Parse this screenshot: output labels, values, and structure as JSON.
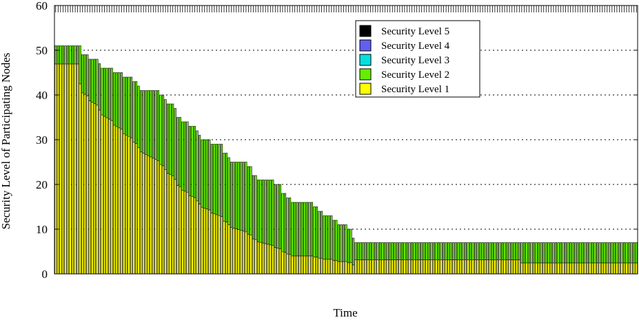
{
  "chart_data": {
    "type": "bar",
    "stacked": true,
    "xlabel": "Time",
    "ylabel": "Security Level of Participating Nodes",
    "ylim": [
      0,
      60
    ],
    "yticks": [
      "0",
      "10",
      "20",
      "30",
      "40",
      "50",
      "60"
    ],
    "grid": "horizontal-dotted",
    "legend_position": "top-right",
    "series": [
      {
        "name": "Security Level 5",
        "color": "#000000"
      },
      {
        "name": "Security Level 4",
        "color": "#6060f0"
      },
      {
        "name": "Security Level 3",
        "color": "#00e0e0"
      },
      {
        "name": "Security Level 2",
        "color": "#66ee00"
      },
      {
        "name": "Security Level 1",
        "color": "#ffff00"
      }
    ],
    "note": "Each time step shows the total security level of participating nodes as a stacked bar; the total declines stepwise from 51 to 7.",
    "totals": [
      51,
      51,
      51,
      51,
      51,
      51,
      51,
      51,
      51,
      51,
      51,
      49,
      49,
      49,
      48,
      48,
      48,
      48,
      47,
      46,
      46,
      46,
      46,
      46,
      45,
      45,
      45,
      45,
      44,
      44,
      44,
      44,
      43,
      43,
      42,
      41,
      41,
      41,
      41,
      41,
      41,
      41,
      41,
      40,
      40,
      39,
      38,
      38,
      38,
      37,
      35,
      35,
      34,
      34,
      34,
      33,
      33,
      33,
      32,
      31,
      30,
      30,
      30,
      30,
      29,
      29,
      29,
      29,
      29,
      27,
      27,
      26,
      25,
      25,
      25,
      25,
      25,
      25,
      25,
      24,
      24,
      22,
      22,
      21,
      21,
      21,
      21,
      21,
      21,
      21,
      20,
      20,
      20,
      18,
      18,
      17,
      17,
      16,
      16,
      16,
      16,
      16,
      16,
      16,
      16,
      16,
      15,
      15,
      14,
      14,
      13,
      13,
      13,
      13,
      12,
      12,
      11,
      11,
      11,
      11,
      10,
      10,
      8,
      7,
      7,
      7,
      7,
      7,
      7,
      7,
      7,
      7,
      7,
      7,
      7,
      7,
      7,
      7,
      7,
      7,
      7,
      7,
      7,
      7,
      7,
      7,
      7,
      7,
      7,
      7,
      7,
      7,
      7,
      7,
      7,
      7,
      7,
      7,
      7,
      7,
      7,
      7,
      7,
      7,
      7,
      7,
      7,
      7,
      7,
      7,
      7,
      7,
      7,
      7,
      7,
      7,
      7,
      7,
      7,
      7,
      7,
      7,
      7,
      7,
      7,
      7,
      7,
      7,
      7,
      7,
      7,
      7,
      7,
      7,
      7,
      7,
      7,
      7,
      7,
      7,
      7,
      7,
      7,
      7,
      7,
      7,
      7,
      7,
      7,
      7,
      7,
      7,
      7,
      7,
      7,
      7,
      7,
      7,
      7,
      7,
      7,
      7,
      7,
      7,
      7,
      7,
      7,
      7,
      7,
      7,
      7,
      7,
      7,
      7,
      7,
      7,
      7,
      7,
      7
    ]
  }
}
